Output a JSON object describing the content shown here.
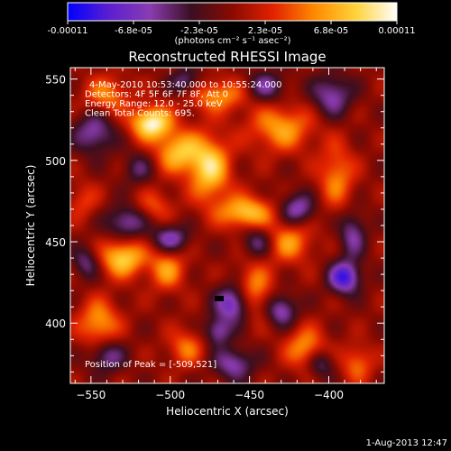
{
  "colorbar": {
    "ticks": [
      "-0.00011",
      "-6.8e-05",
      "-2.3e-05",
      "2.3e-05",
      "6.8e-05",
      "0.00011"
    ],
    "units": "(photons cm⁻² s⁻¹ asec⁻²)",
    "range": [
      -0.00011,
      0.00011
    ],
    "colormap": [
      "#0000ff",
      "#5a1fd0",
      "#8a3cb0",
      "#3a0f22",
      "#8a0a00",
      "#e22200",
      "#ff8a00",
      "#ffd23a",
      "#ffffff"
    ]
  },
  "chart_data": {
    "type": "heatmap",
    "title": "Reconstructed RHESSI Image",
    "xlabel": "Heliocentric X (arcsec)",
    "ylabel": "Heliocentric Y (arcsec)",
    "xlim": [
      -563,
      -365
    ],
    "ylim": [
      363,
      557
    ],
    "xticks": [
      -550,
      -500,
      -450,
      -400
    ],
    "yticks": [
      400,
      450,
      500,
      550
    ],
    "xtick_labels": [
      "−550",
      "−500",
      "−450",
      "−400"
    ],
    "ytick_labels": [
      "400",
      "450",
      "500",
      "550"
    ],
    "info_lines": [
      "4-May-2010 10:53:40.000 to 10:55:24.000",
      "Detectors: 4F 5F 6F 7F 8F, Att 0",
      "Energy Range: 12.0 - 25.0 keV",
      "Clean    Total Counts: 695."
    ],
    "peak_label": "Position of Peak = [-509,521]",
    "peak": [
      -509,
      521
    ],
    "blobs": [
      {
        "x": -512,
        "y": 523,
        "sx": 9,
        "sy": 7,
        "a": 1.0
      },
      {
        "x": -495,
        "y": 505,
        "sx": 10,
        "sy": 9,
        "a": 0.7
      },
      {
        "x": -475,
        "y": 495,
        "sx": 9,
        "sy": 14,
        "a": 0.8
      },
      {
        "x": -452,
        "y": 468,
        "sx": 12,
        "sy": 7,
        "a": 0.75
      },
      {
        "x": -430,
        "y": 520,
        "sx": 14,
        "sy": 10,
        "a": 0.6
      },
      {
        "x": -470,
        "y": 540,
        "sx": 14,
        "sy": 7,
        "a": 0.55
      },
      {
        "x": -540,
        "y": 540,
        "sx": 10,
        "sy": 8,
        "a": 0.5
      },
      {
        "x": -530,
        "y": 440,
        "sx": 10,
        "sy": 8,
        "a": 0.8
      },
      {
        "x": -502,
        "y": 433,
        "sx": 8,
        "sy": 9,
        "a": 0.55
      },
      {
        "x": -545,
        "y": 400,
        "sx": 9,
        "sy": 10,
        "a": 0.6
      },
      {
        "x": -490,
        "y": 385,
        "sx": 8,
        "sy": 8,
        "a": 0.45
      },
      {
        "x": -447,
        "y": 420,
        "sx": 8,
        "sy": 12,
        "a": 0.55
      },
      {
        "x": -425,
        "y": 450,
        "sx": 10,
        "sy": 9,
        "a": 0.55
      },
      {
        "x": -395,
        "y": 490,
        "sx": 8,
        "sy": 14,
        "a": 0.5
      },
      {
        "x": -415,
        "y": 385,
        "sx": 9,
        "sy": 9,
        "a": 0.55
      },
      {
        "x": -382,
        "y": 375,
        "sx": 7,
        "sy": 8,
        "a": 0.45
      },
      {
        "x": -510,
        "y": 472,
        "sx": 8,
        "sy": 7,
        "a": 0.35
      },
      {
        "x": -555,
        "y": 475,
        "sx": 7,
        "sy": 8,
        "a": 0.3
      },
      {
        "x": -470,
        "y": 395,
        "sx": 6,
        "sy": 6,
        "a": -0.55
      },
      {
        "x": -460,
        "y": 412,
        "sx": 8,
        "sy": 8,
        "a": -0.75
      },
      {
        "x": -430,
        "y": 408,
        "sx": 7,
        "sy": 7,
        "a": -0.6
      },
      {
        "x": -390,
        "y": 428,
        "sx": 7,
        "sy": 7,
        "a": -0.85
      },
      {
        "x": -420,
        "y": 470,
        "sx": 8,
        "sy": 7,
        "a": -0.6
      },
      {
        "x": -445,
        "y": 450,
        "sx": 7,
        "sy": 7,
        "a": -0.45
      },
      {
        "x": -500,
        "y": 452,
        "sx": 8,
        "sy": 6,
        "a": -0.6
      },
      {
        "x": -528,
        "y": 462,
        "sx": 9,
        "sy": 7,
        "a": -0.55
      },
      {
        "x": -548,
        "y": 517,
        "sx": 9,
        "sy": 9,
        "a": -0.55
      },
      {
        "x": -490,
        "y": 548,
        "sx": 7,
        "sy": 6,
        "a": -0.5
      },
      {
        "x": -440,
        "y": 545,
        "sx": 9,
        "sy": 7,
        "a": -0.5
      },
      {
        "x": -398,
        "y": 540,
        "sx": 9,
        "sy": 9,
        "a": -0.55
      },
      {
        "x": -520,
        "y": 495,
        "sx": 7,
        "sy": 7,
        "a": -0.35
      },
      {
        "x": -540,
        "y": 380,
        "sx": 8,
        "sy": 7,
        "a": -0.5
      },
      {
        "x": -460,
        "y": 375,
        "sx": 9,
        "sy": 7,
        "a": -0.55
      },
      {
        "x": -385,
        "y": 455,
        "sx": 6,
        "sy": 10,
        "a": -0.5
      },
      {
        "x": -405,
        "y": 375,
        "sx": 6,
        "sy": 6,
        "a": -0.45
      },
      {
        "x": -553,
        "y": 437,
        "sx": 6,
        "sy": 7,
        "a": -0.45
      }
    ]
  },
  "footer": {
    "timestamp": "1-Aug-2013 12:47"
  }
}
